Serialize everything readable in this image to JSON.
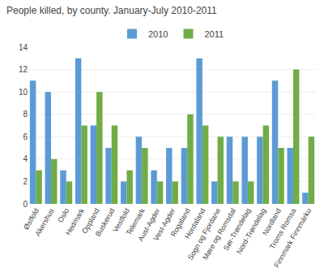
{
  "chart_data": {
    "type": "bar",
    "title": "People killed, by county. January-July 2010-2011",
    "categories": [
      "Østfold",
      "Akershus",
      "Oslo",
      "Hedmark",
      "Oppland",
      "Buskerud",
      "Vestfold",
      "Telemark",
      "Aust-Agder",
      "Vest-Agder",
      "Rogaland",
      "Hordaland",
      "Sogn og Fjordane",
      "Møre og Romsdal",
      "Sør-Trøndelag",
      "Nord-Trøndelag",
      "Nordland",
      "Troms Romsa",
      "Finnmark Finnmárku"
    ],
    "series": [
      {
        "name": "2010",
        "color": "#5b9bd5",
        "values": [
          11,
          10,
          3,
          13,
          7,
          5,
          2,
          6,
          3,
          5,
          5,
          13,
          2,
          6,
          6,
          6,
          11,
          5,
          1
        ]
      },
      {
        "name": "2011",
        "color": "#70ad47",
        "values": [
          3,
          4,
          2,
          7,
          10,
          7,
          3,
          5,
          2,
          2,
          8,
          7,
          6,
          2,
          2,
          7,
          5,
          12,
          6
        ]
      }
    ],
    "ylim": [
      0,
      14
    ],
    "yticks": [
      0,
      2,
      4,
      6,
      8,
      10,
      12,
      14
    ],
    "grid": true,
    "legend": "top"
  }
}
